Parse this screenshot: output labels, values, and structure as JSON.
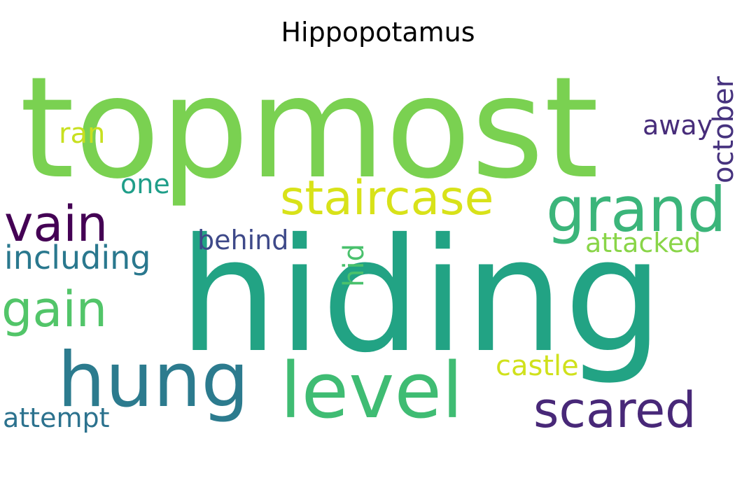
{
  "title": "Hippopotamus",
  "words": [
    {
      "text": "topmost",
      "color": "#7ad151"
    },
    {
      "text": "hiding",
      "color": "#22a384"
    },
    {
      "text": "grand",
      "color": "#3bb57a"
    },
    {
      "text": "staircase",
      "color": "#d8e219"
    },
    {
      "text": "vain",
      "color": "#440154"
    },
    {
      "text": "hung",
      "color": "#2c7b8e"
    },
    {
      "text": "level",
      "color": "#3fbc73"
    },
    {
      "text": "scared",
      "color": "#482878"
    },
    {
      "text": "gain",
      "color": "#52c569"
    },
    {
      "text": "including",
      "color": "#2a788e"
    },
    {
      "text": "behind",
      "color": "#3e4989"
    },
    {
      "text": "attacked",
      "color": "#89d548"
    },
    {
      "text": "castle",
      "color": "#d0e11c"
    },
    {
      "text": "attempt",
      "color": "#2c728e"
    },
    {
      "text": "ran",
      "color": "#c8e020"
    },
    {
      "text": "one",
      "color": "#1f9e89"
    },
    {
      "text": "away",
      "color": "#472c7a"
    },
    {
      "text": "october",
      "color": "#46327e"
    },
    {
      "text": "hid",
      "color": "#4ac16d"
    }
  ]
}
